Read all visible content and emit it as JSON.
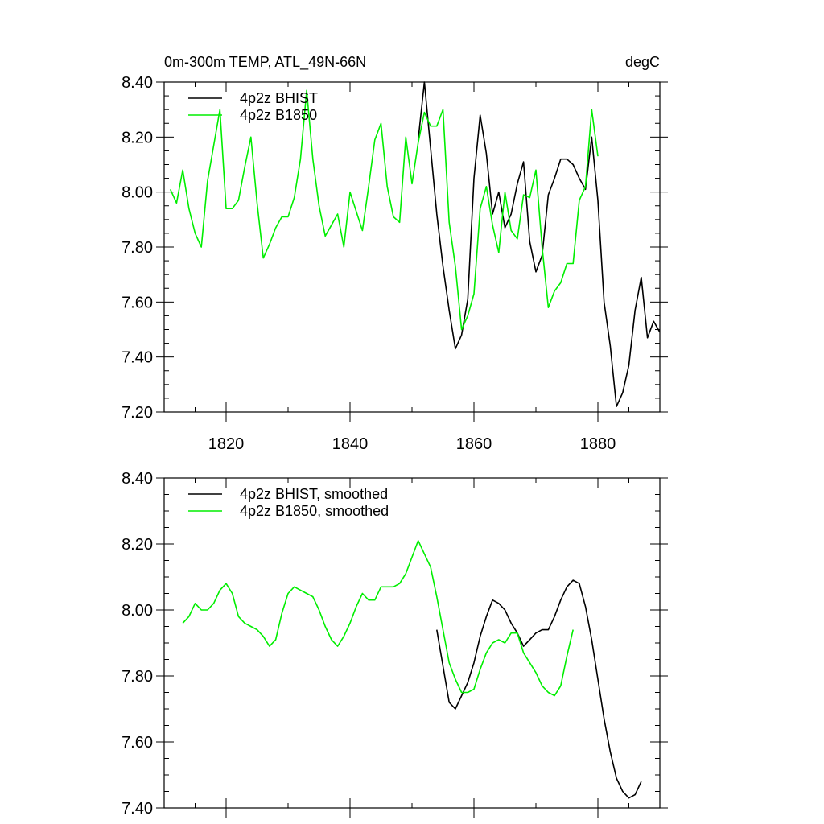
{
  "chart_data": [
    {
      "type": "line",
      "title": "0m-300m TEMP, ATL_49N-66N",
      "units": "degC",
      "xlim": [
        1810,
        1890
      ],
      "ylim": [
        7.2,
        8.4
      ],
      "xticks": [
        1820,
        1840,
        1860,
        1880
      ],
      "yticks": [
        7.2,
        7.4,
        7.6,
        7.8,
        8.0,
        8.2,
        8.4
      ],
      "ytick_labels": [
        "7.20",
        "7.40",
        "7.60",
        "7.80",
        "8.00",
        "8.20",
        "8.40"
      ],
      "xtick_labels": [
        "1820",
        "1840",
        "1860",
        "1880"
      ],
      "legend_position": "top-left",
      "series": [
        {
          "name": "4p2z BHIST",
          "color": "#000000",
          "x_start": 1851,
          "values": [
            8.19,
            8.4,
            8.16,
            7.92,
            7.73,
            7.57,
            7.43,
            7.48,
            7.61,
            8.05,
            8.28,
            8.14,
            7.92,
            8.0,
            7.87,
            7.92,
            8.03,
            8.11,
            7.82,
            7.71,
            7.77,
            7.99,
            8.05,
            8.12,
            8.12,
            8.1,
            8.05,
            8.01,
            8.2,
            7.97,
            7.6,
            7.44,
            7.22,
            7.27,
            7.37,
            7.57,
            7.69,
            7.47,
            7.53,
            7.49
          ]
        },
        {
          "name": "4p2z B1850",
          "color": "#00ee00",
          "x_start": 1811,
          "values": [
            8.01,
            7.96,
            8.08,
            7.94,
            7.85,
            7.8,
            8.04,
            8.17,
            8.3,
            7.94,
            7.94,
            7.97,
            8.09,
            8.2,
            7.96,
            7.76,
            7.81,
            7.87,
            7.91,
            7.91,
            7.98,
            8.12,
            8.37,
            8.12,
            7.95,
            7.84,
            7.88,
            7.92,
            7.8,
            8.0,
            7.93,
            7.86,
            8.02,
            8.19,
            8.25,
            8.02,
            7.91,
            7.89,
            8.2,
            8.03,
            8.18,
            8.29,
            8.24,
            8.24,
            8.3,
            7.89,
            7.73,
            7.5,
            7.55,
            7.63,
            7.94,
            8.02,
            7.88,
            7.78,
            8.0,
            7.86,
            7.83,
            7.99,
            7.98,
            8.08,
            7.8,
            7.58,
            7.64,
            7.67,
            7.74,
            7.74,
            7.97,
            8.02,
            8.3,
            8.13
          ]
        }
      ]
    },
    {
      "type": "line",
      "title": "",
      "units": "",
      "xlim": [
        1810,
        1890
      ],
      "ylim": [
        7.4,
        8.4
      ],
      "xticks": [
        1820,
        1840,
        1860,
        1880
      ],
      "yticks": [
        7.4,
        7.6,
        7.8,
        8.0,
        8.2,
        8.4
      ],
      "ytick_labels": [
        "7.40",
        "7.60",
        "7.80",
        "8.00",
        "8.20",
        "8.40"
      ],
      "xtick_labels": [],
      "legend_position": "top-left",
      "series": [
        {
          "name": "4p2z BHIST, smoothed",
          "color": "#000000",
          "x_start": 1854,
          "values": [
            7.94,
            7.83,
            7.72,
            7.7,
            7.74,
            7.78,
            7.84,
            7.92,
            7.98,
            8.03,
            8.02,
            8.0,
            7.96,
            7.93,
            7.89,
            7.91,
            7.93,
            7.94,
            7.94,
            7.98,
            8.03,
            8.07,
            8.09,
            8.08,
            8.01,
            7.91,
            7.79,
            7.67,
            7.57,
            7.49,
            7.45,
            7.43,
            7.44,
            7.48
          ]
        },
        {
          "name": "4p2z B1850, smoothed",
          "color": "#00ee00",
          "x_start": 1813,
          "values": [
            7.96,
            7.98,
            8.02,
            8.0,
            8.0,
            8.02,
            8.06,
            8.08,
            8.05,
            7.98,
            7.96,
            7.95,
            7.94,
            7.92,
            7.89,
            7.91,
            7.99,
            8.05,
            8.07,
            8.06,
            8.05,
            8.04,
            8.0,
            7.95,
            7.91,
            7.89,
            7.92,
            7.96,
            8.01,
            8.05,
            8.03,
            8.03,
            8.07,
            8.07,
            8.07,
            8.08,
            8.11,
            8.16,
            8.21,
            8.17,
            8.13,
            8.04,
            7.94,
            7.84,
            7.79,
            7.75,
            7.75,
            7.76,
            7.82,
            7.87,
            7.9,
            7.91,
            7.9,
            7.93,
            7.93,
            7.87,
            7.84,
            7.81,
            7.77,
            7.75,
            7.74,
            7.77,
            7.86,
            7.94
          ]
        }
      ]
    }
  ]
}
